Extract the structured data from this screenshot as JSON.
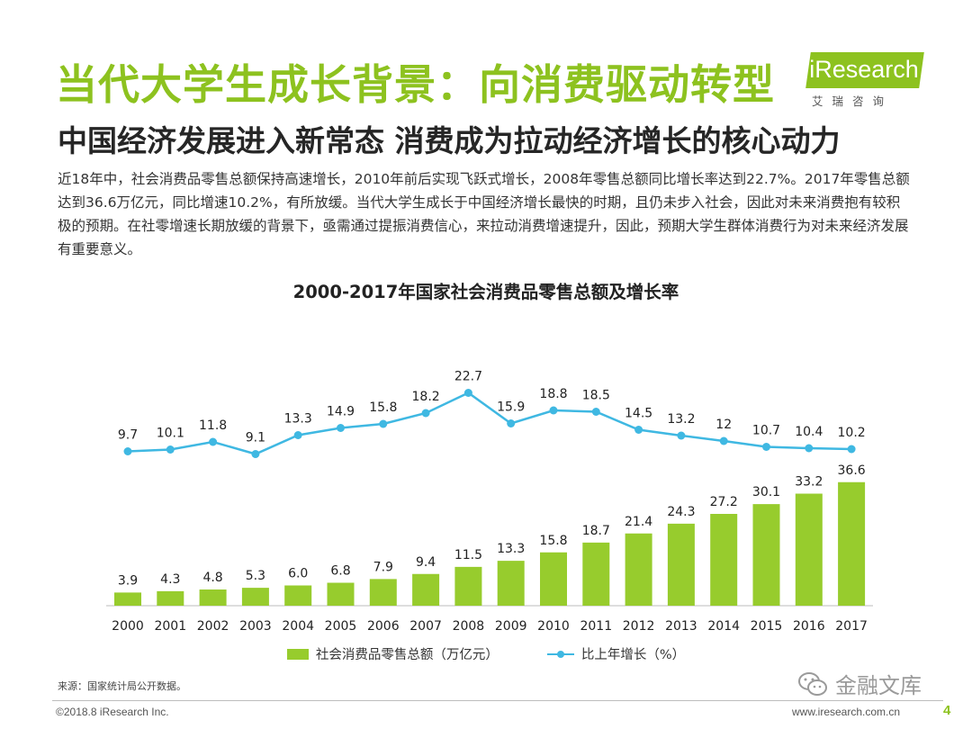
{
  "header": {
    "title": "当代大学生成长背景：向消费驱动转型",
    "subtitle": "中国经济发展进入新常态 消费成为拉动经济增长的核心动力",
    "body": "近18年中，社会消费品零售总额保持高速增长，2010年前后实现飞跃式增长，2008年零售总额同比增长率达到22.7%。2017年零售总额达到36.6万亿元，同比增速10.2%，有所放缓。当代大学生成长于中国经济增长最快的时期，且仍未步入社会，因此对未来消费抱有较积极的预期。在社零增速长期放缓的背景下，亟需通过提振消费信心，来拉动消费增速提升，因此，预期大学生群体消费行为对未来经济发展有重要意义。"
  },
  "logo": {
    "text": "iResearch",
    "sub": "艾瑞咨询"
  },
  "colors": {
    "accent": "#8dc21f",
    "bar": "#97cc2d",
    "line": "#3fb8e2"
  },
  "chart_data": {
    "type": "bar+line",
    "title": "2000-2017年国家社会消费品零售总额及增长率",
    "categories": [
      "2000",
      "2001",
      "2002",
      "2003",
      "2004",
      "2005",
      "2006",
      "2007",
      "2008",
      "2009",
      "2010",
      "2011",
      "2012",
      "2013",
      "2014",
      "2015",
      "2016",
      "2017"
    ],
    "series": [
      {
        "name": "社会消费品零售总额（万亿元）",
        "type": "bar",
        "values": [
          3.9,
          4.3,
          4.8,
          5.3,
          6.0,
          6.8,
          7.9,
          9.4,
          11.5,
          13.3,
          15.8,
          18.7,
          21.4,
          24.3,
          27.2,
          30.1,
          33.2,
          36.6
        ],
        "labels": [
          "3.9",
          "4.3",
          "4.8",
          "5.3",
          "6.0",
          "6.8",
          "7.9",
          "9.4",
          "11.5",
          "13.3",
          "15.8",
          "18.7",
          "21.4",
          "24.3",
          "27.2",
          "30.1",
          "33.2",
          "36.6"
        ]
      },
      {
        "name": "比上年增长（%）",
        "type": "line",
        "values": [
          9.7,
          10.1,
          11.8,
          9.1,
          13.3,
          14.9,
          15.8,
          18.2,
          22.7,
          15.9,
          18.8,
          18.5,
          14.5,
          13.2,
          12,
          10.7,
          10.4,
          10.2
        ],
        "labels": [
          "9.7",
          "10.1",
          "11.8",
          "9.1",
          "13.3",
          "14.9",
          "15.8",
          "18.2",
          "22.7",
          "15.9",
          "18.8",
          "18.5",
          "14.5",
          "13.2",
          "12",
          "10.7",
          "10.4",
          "10.2"
        ]
      }
    ],
    "legend_position": "bottom",
    "grid": false
  },
  "footer": {
    "source": "来源：国家统计局公开数据。",
    "copyright": "©2018.8 iResearch Inc.",
    "site": "www.iresearch.com.cn",
    "page": "4",
    "watermark": "金融文库"
  }
}
